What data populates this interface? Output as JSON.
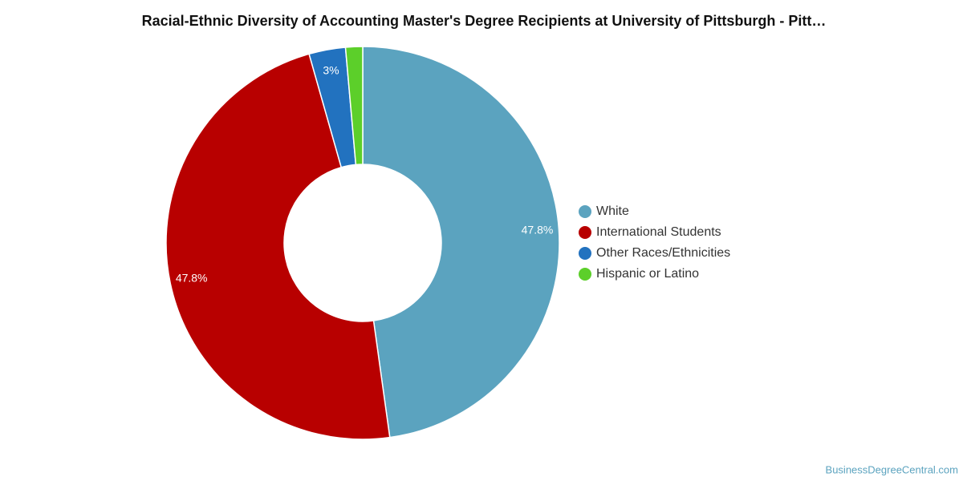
{
  "chart_data": {
    "type": "donut",
    "title": "Racial-Ethnic Diversity of Accounting Master's Degree Recipients at University of Pittsburgh - Pitt…",
    "categories": [
      "White",
      "International Students",
      "Other Races/Ethnicities",
      "Hispanic or Latino"
    ],
    "values": [
      47.8,
      47.8,
      3,
      1.4
    ],
    "value_labels": [
      "47.8%",
      "47.8%",
      "3%",
      null
    ],
    "colors": [
      "#5ba3bf",
      "#b80000",
      "#2272bf",
      "#5ccf2a"
    ],
    "legend": "right",
    "watermark": "BusinessDegreeCentral.com"
  }
}
